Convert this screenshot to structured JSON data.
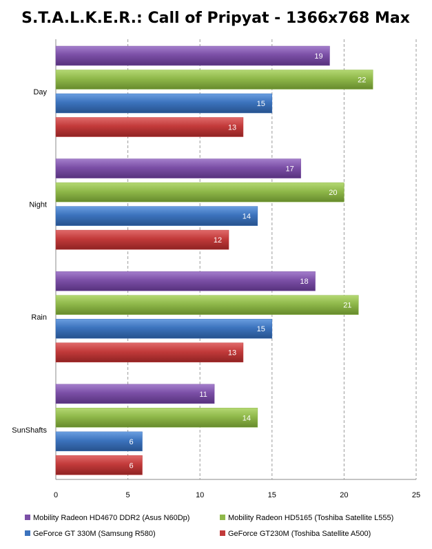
{
  "chart_data": {
    "type": "bar",
    "orientation": "horizontal",
    "title": "S.T.A.L.K.E.R.: Call of Pripyat - 1366x768 Max",
    "categories": [
      "Day",
      "Night",
      "Rain",
      "SunShafts"
    ],
    "series": [
      {
        "name": "Mobility Radeon HD4670 DDR2 (Asus N60Dp)",
        "color": "#7b4fa6",
        "values": [
          19,
          17,
          18,
          11
        ]
      },
      {
        "name": "Mobility Radeon HD5165 (Toshiba Satellite L555)",
        "color": "#8fb84a",
        "values": [
          22,
          20,
          21,
          14
        ]
      },
      {
        "name": "GeForce GT 330M (Samsung R580)",
        "color": "#3c73bd",
        "values": [
          15,
          14,
          15,
          6
        ]
      },
      {
        "name": "GeForce GT230M (Toshiba Satellite A500)",
        "color": "#c23a3a",
        "values": [
          13,
          12,
          13,
          6
        ]
      }
    ],
    "xlim": [
      0,
      25
    ],
    "xticks": [
      "0",
      "5",
      "10",
      "15",
      "20",
      "25"
    ],
    "grid": "vertical-dashed",
    "legend_position": "bottom"
  }
}
